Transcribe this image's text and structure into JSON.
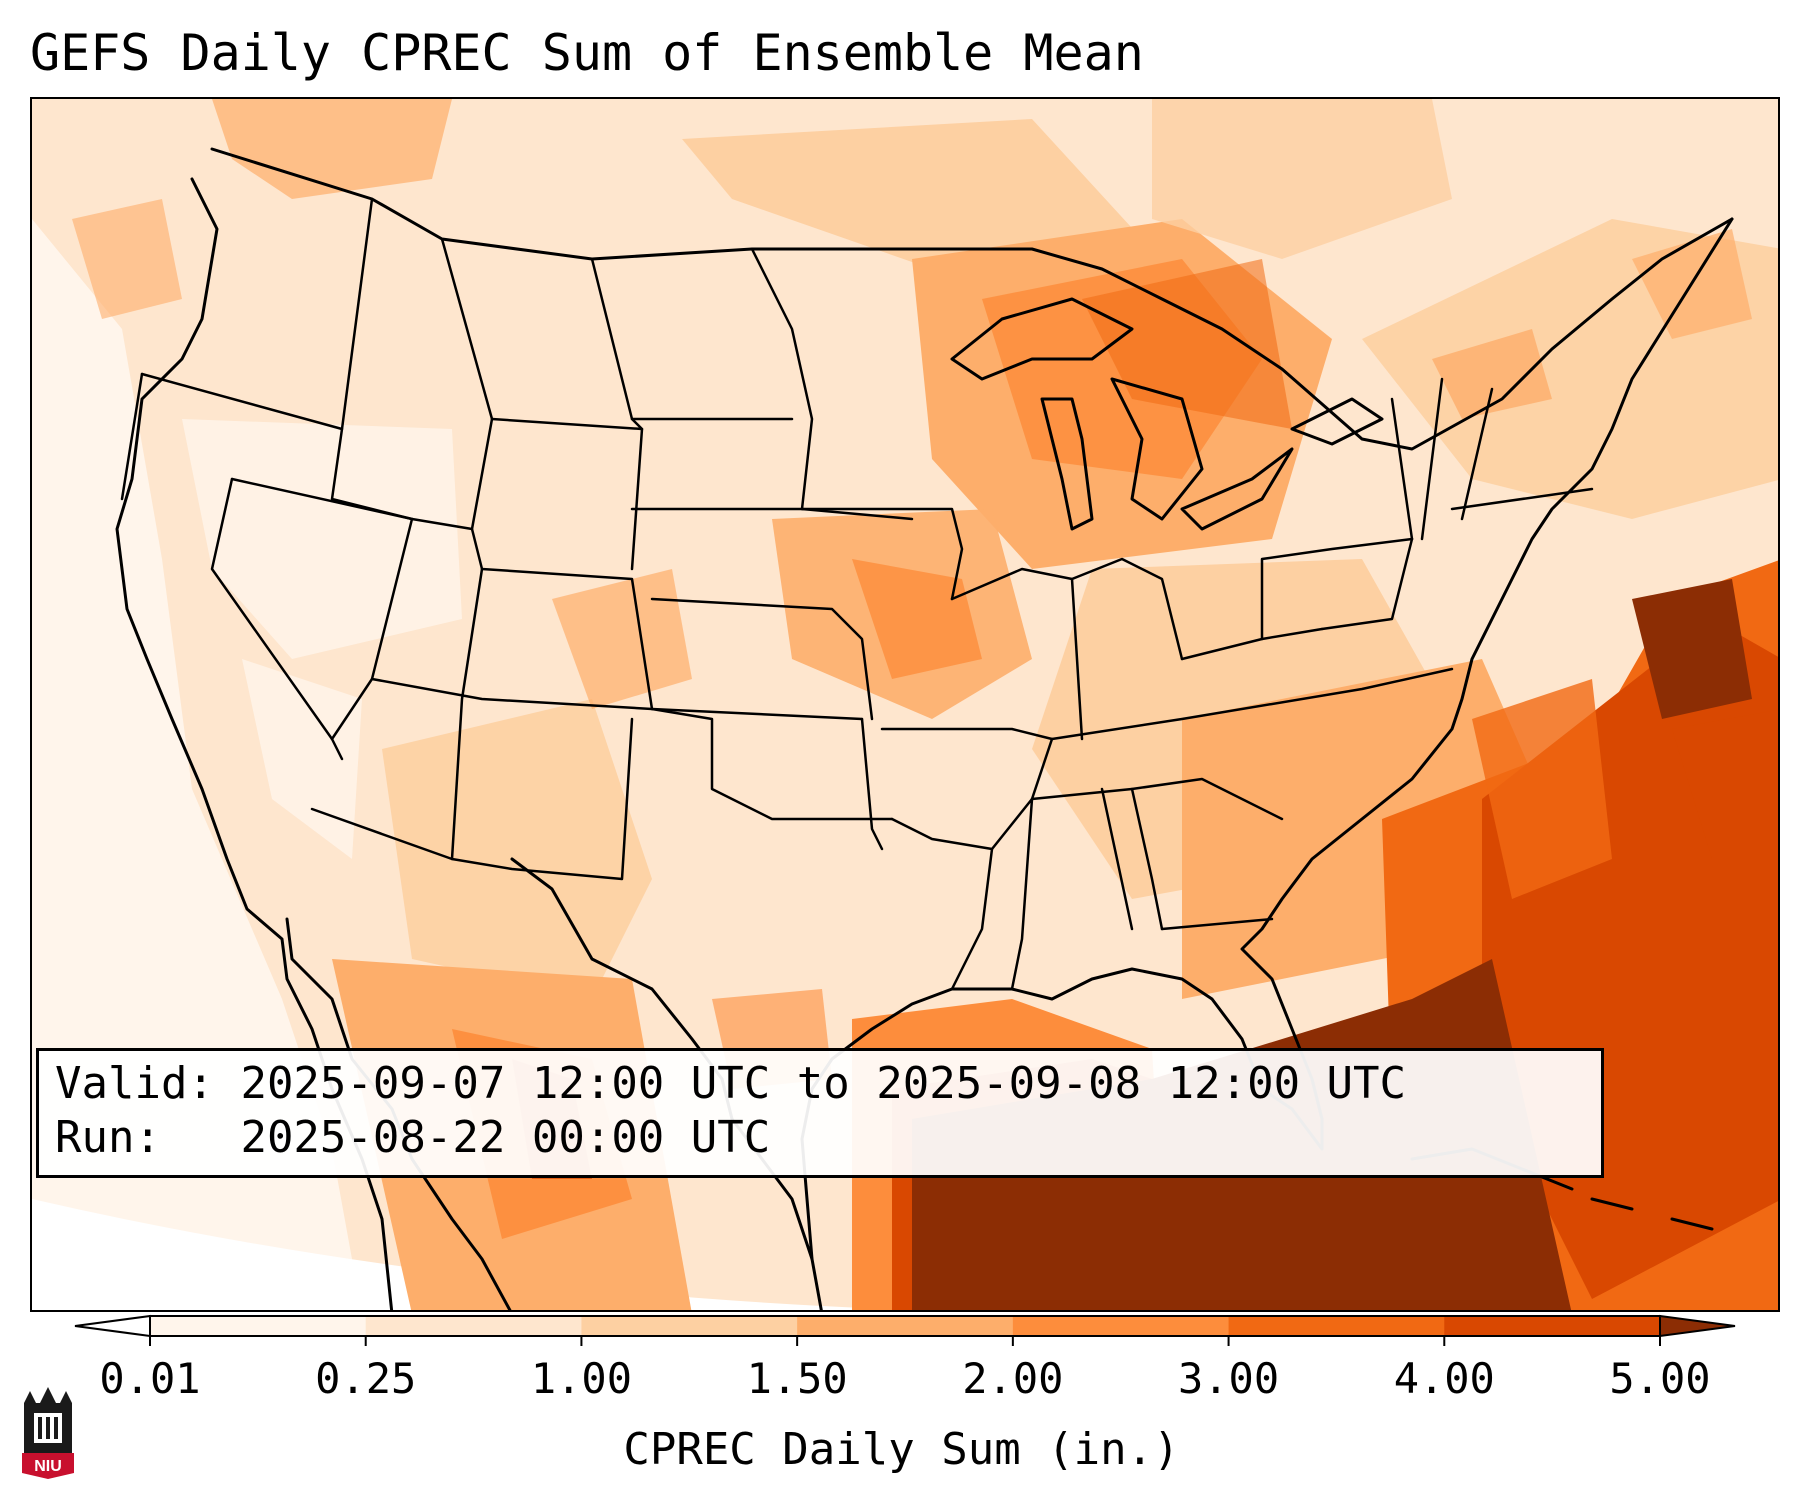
{
  "title": "GEFS Daily CPREC Sum of Ensemble Mean",
  "info": {
    "valid_label": "Valid:",
    "valid_value": "2025-09-07 12:00 UTC to 2025-09-08 12:00 UTC",
    "run_label": "Run:",
    "run_value": "2025-08-22 00:00 UTC"
  },
  "colorbar": {
    "label": "CPREC Daily Sum (in.)",
    "ticks": [
      "0.01",
      "0.25",
      "1.00",
      "1.50",
      "2.00",
      "3.00",
      "4.00",
      "5.00"
    ],
    "colors": [
      "#fff5eb",
      "#fee6ce",
      "#fdd0a2",
      "#fdae6b",
      "#fd8d3c",
      "#f16913",
      "#d94801",
      "#8c2d04"
    ],
    "under_color": "#ffffff",
    "over_color": "#8c2d04"
  },
  "logo": {
    "text": "NIU",
    "color": "#c8102e",
    "icon": "niu-tower-logo-icon"
  }
}
